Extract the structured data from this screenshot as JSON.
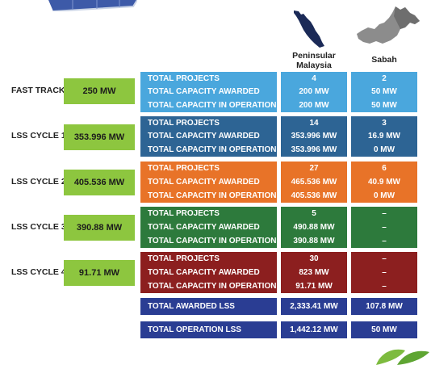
{
  "columns": {
    "peninsular": "Peninsular\nMalaysia",
    "peninsular_l1": "Peninsular",
    "peninsular_l2": "Malaysia",
    "sabah": "Sabah"
  },
  "row_labels": [
    "TOTAL PROJECTS",
    "TOTAL CAPACITY AWARDED",
    "TOTAL CAPACITY IN OPERATION"
  ],
  "stages": [
    {
      "name": "FAST TRACK",
      "capacity": "250 MW",
      "peninsular": [
        "4",
        "200 MW",
        "200 MW"
      ],
      "sabah": [
        "2",
        "50 MW",
        "50 MW"
      ],
      "color": "#4aa7dd"
    },
    {
      "name": "LSS CYCLE 1",
      "capacity": "353.996 MW",
      "peninsular": [
        "14",
        "353.996 MW",
        "353.996 MW"
      ],
      "sabah": [
        "3",
        "16.9 MW",
        "0 MW"
      ],
      "color": "#2d6494"
    },
    {
      "name": "LSS CYCLE 2",
      "capacity": "405.536 MW",
      "peninsular": [
        "27",
        "465.536 MW",
        "405.536 MW"
      ],
      "sabah": [
        "6",
        "40.9 MW",
        "0 MW"
      ],
      "color": "#e87328"
    },
    {
      "name": "LSS CYCLE 3",
      "capacity": "390.88 MW",
      "peninsular": [
        "5",
        "490.88 MW",
        "390.88 MW"
      ],
      "sabah": [
        "–",
        "–",
        "–"
      ],
      "color": "#2d7a3c"
    },
    {
      "name": "LSS CYCLE 4",
      "capacity": "91.71 MW",
      "peninsular": [
        "30",
        "823 MW",
        "91.71 MW"
      ],
      "sabah": [
        "–",
        "–",
        "–"
      ],
      "color": "#8c1f1f"
    }
  ],
  "totals": [
    {
      "label": "TOTAL AWARDED LSS",
      "peninsular": "2,333.41 MW",
      "sabah": "107.8 MW"
    },
    {
      "label": "TOTAL OPERATION LSS",
      "peninsular": "1,442.12 MW",
      "sabah": "50 MW"
    }
  ],
  "icons": {
    "peninsular_map": "peninsular-malaysia-map-icon",
    "sabah_map": "sabah-map-icon",
    "solar_panel": "solar-panel-icon",
    "leaf": "leaf-icon"
  },
  "colors": {
    "capacity_badge": "#8dc63f",
    "totals": "#2a3d93",
    "peninsular_map": "#1b2a57",
    "sabah_map": "#8c8c8c"
  }
}
